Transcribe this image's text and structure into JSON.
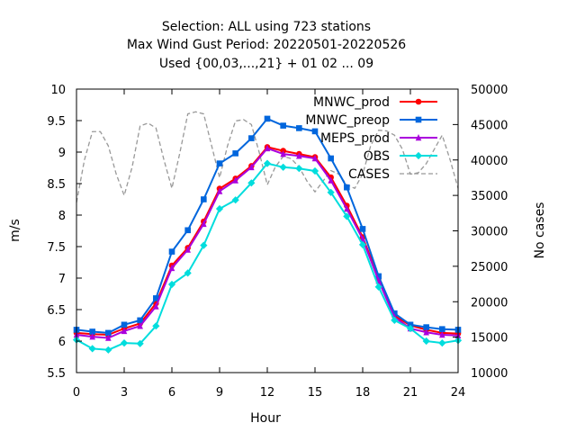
{
  "chart_data": {
    "type": "line",
    "title_lines": [
      "Selection: ALL using   723 stations",
      "Max Wind Gust   Period: 20220501-20220526",
      "Used {00,03,...,21} + 01 02 ... 09"
    ],
    "xlabel": "Hour",
    "ylabel": "m/s",
    "y2label": "No cases",
    "xlim": [
      0,
      24
    ],
    "ylim": [
      5.5,
      10
    ],
    "y2lim": [
      10000,
      50000
    ],
    "xticks": [
      0,
      3,
      6,
      9,
      12,
      15,
      18,
      21,
      24
    ],
    "yticks": [
      5.5,
      6,
      6.5,
      7,
      7.5,
      8,
      8.5,
      9,
      9.5,
      10
    ],
    "y2ticks": [
      10000,
      15000,
      20000,
      25000,
      30000,
      35000,
      40000,
      45000,
      50000
    ],
    "ytick_labels": [
      "5.5",
      "6",
      "6.5",
      "7",
      "7.5",
      "8",
      "8.5",
      "9",
      "9.5",
      "10"
    ],
    "grid": false,
    "legend_position": "top-right",
    "x": [
      0,
      1,
      2,
      3,
      4,
      5,
      6,
      7,
      8,
      9,
      10,
      11,
      12,
      13,
      14,
      15,
      16,
      17,
      18,
      19,
      20,
      21,
      22,
      23,
      24
    ],
    "series": [
      {
        "name": "MNWC_prod",
        "color": "#ff0000",
        "marker": "filled-circle",
        "values": [
          6.13,
          6.11,
          6.1,
          6.2,
          6.28,
          6.6,
          7.2,
          7.48,
          7.9,
          8.42,
          8.58,
          8.78,
          9.08,
          9.02,
          8.97,
          8.92,
          8.6,
          8.15,
          7.65,
          7.0,
          6.4,
          6.25,
          6.18,
          6.13,
          6.12
        ]
      },
      {
        "name": "MNWC_preop",
        "color": "#0066dd",
        "marker": "filled-square",
        "values": [
          6.18,
          6.15,
          6.13,
          6.26,
          6.33,
          6.68,
          7.42,
          7.76,
          8.25,
          8.82,
          8.98,
          9.22,
          9.53,
          9.42,
          9.38,
          9.33,
          8.9,
          8.44,
          7.78,
          7.03,
          6.44,
          6.26,
          6.22,
          6.19,
          6.18
        ]
      },
      {
        "name": "MEPS_prod",
        "color": "#aa00dd",
        "marker": "filled-triangle",
        "values": [
          6.1,
          6.07,
          6.05,
          6.16,
          6.24,
          6.55,
          7.16,
          7.45,
          7.86,
          8.38,
          8.55,
          8.76,
          9.06,
          8.97,
          8.94,
          8.9,
          8.55,
          8.1,
          7.62,
          6.96,
          6.38,
          6.2,
          6.14,
          6.1,
          6.09
        ]
      },
      {
        "name": "OBS",
        "color": "#00dddd",
        "marker": "filled-diamond",
        "values": [
          6.02,
          5.88,
          5.86,
          5.97,
          5.96,
          6.24,
          6.9,
          7.08,
          7.52,
          8.1,
          8.24,
          8.51,
          8.82,
          8.76,
          8.74,
          8.7,
          8.36,
          7.98,
          7.53,
          6.86,
          6.33,
          6.2,
          6.0,
          5.97,
          6.01
        ]
      },
      {
        "name": "CASES",
        "color": "#999999",
        "dashed": true,
        "axis": "right",
        "x": [
          0,
          0.5,
          1,
          1.5,
          2,
          2.5,
          3,
          3.5,
          4,
          4.5,
          5,
          5.5,
          6,
          6.5,
          7,
          7.5,
          8,
          8.5,
          9,
          9.5,
          10,
          10.5,
          11,
          11.5,
          12,
          12.5,
          13,
          13.5,
          14,
          14.5,
          15,
          15.5,
          16,
          16.5,
          17,
          17.5,
          18,
          18.5,
          19,
          19.5,
          20,
          20.5,
          21,
          21.5,
          22,
          22.5,
          23,
          23.5,
          24
        ],
        "values": [
          34000,
          40000,
          44000,
          44000,
          42000,
          38000,
          35000,
          39000,
          44800,
          45200,
          44500,
          40000,
          36000,
          41000,
          46500,
          46800,
          46500,
          42000,
          37500,
          42000,
          45500,
          45700,
          45000,
          41000,
          36500,
          39000,
          40500,
          40200,
          39000,
          37000,
          35500,
          37000,
          38500,
          38000,
          36500,
          36000,
          38000,
          42000,
          44200,
          44100,
          43500,
          41500,
          38000,
          38200,
          39500,
          41500,
          43500,
          40000,
          36000
        ]
      }
    ]
  }
}
